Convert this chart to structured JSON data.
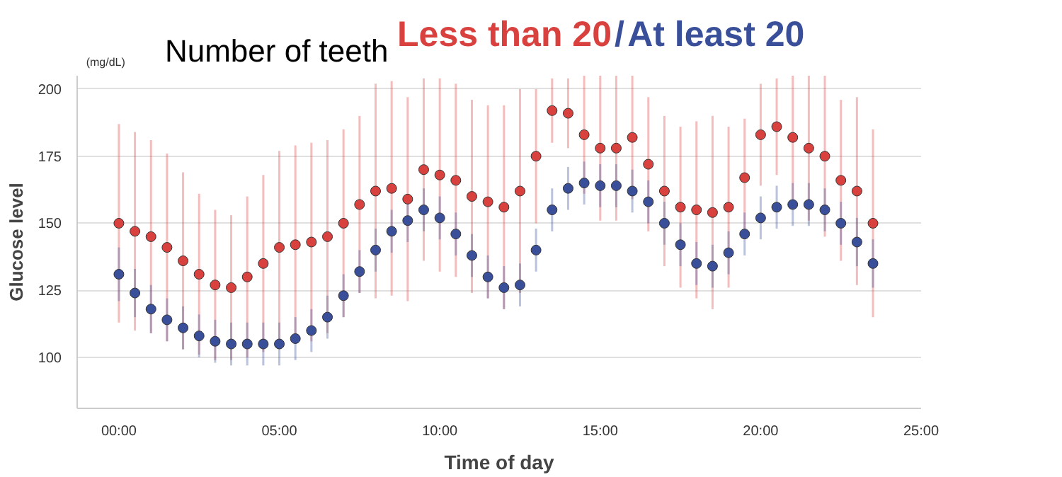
{
  "chart_data": {
    "type": "scatter",
    "title": "Number of teeth",
    "xlabel": "Time of day",
    "ylabel": "Glucose level",
    "annotations": [
      "(mg/dL)",
      "/"
    ],
    "x": [
      0,
      0.5,
      1,
      1.5,
      2,
      2.5,
      3,
      3.5,
      4,
      4.5,
      5,
      5.5,
      6,
      6.5,
      7,
      7.5,
      8,
      8.5,
      9,
      9.5,
      10,
      10.5,
      11,
      11.5,
      12,
      12.5,
      13,
      13.5,
      14,
      14.5,
      15,
      15.5,
      16,
      16.5,
      17,
      17.5,
      18,
      18.5,
      19,
      19.5,
      20,
      20.5,
      21,
      21.5,
      22,
      22.5,
      23,
      23.5
    ],
    "series": [
      {
        "name": "Less than 20",
        "color": "#d9413f",
        "values": [
          150,
          147,
          145,
          141,
          136,
          131,
          127,
          126,
          130,
          135,
          141,
          142,
          143,
          145,
          150,
          157,
          162,
          163,
          159,
          170,
          168,
          166,
          160,
          158,
          156,
          162,
          175,
          192,
          191,
          183,
          178,
          178,
          182,
          172,
          162,
          156,
          155,
          154,
          156,
          167,
          183,
          186,
          182,
          178,
          175,
          166,
          162,
          150
        ],
        "errors": [
          37,
          37,
          36,
          35,
          33,
          30,
          28,
          27,
          30,
          33,
          36,
          37,
          37,
          36,
          35,
          33,
          40,
          40,
          38,
          34,
          36,
          36,
          36,
          36,
          38,
          38,
          25,
          12,
          13,
          22,
          27,
          27,
          23,
          25,
          28,
          30,
          33,
          36,
          30,
          22,
          19,
          18,
          23,
          27,
          30,
          30,
          35,
          35
        ]
      },
      {
        "name": "At least 20",
        "color": "#3a4f9a",
        "values": [
          131,
          124,
          118,
          114,
          111,
          108,
          106,
          105,
          105,
          105,
          105,
          107,
          110,
          115,
          123,
          132,
          140,
          147,
          151,
          155,
          152,
          146,
          138,
          130,
          126,
          127,
          140,
          155,
          163,
          165,
          164,
          164,
          162,
          158,
          150,
          142,
          135,
          134,
          139,
          146,
          152,
          156,
          157,
          157,
          155,
          150,
          143,
          135
        ],
        "errors": [
          10,
          9,
          9,
          8,
          8,
          8,
          8,
          8,
          8,
          8,
          8,
          8,
          8,
          8,
          8,
          8,
          8,
          8,
          8,
          8,
          8,
          8,
          8,
          8,
          8,
          8,
          8,
          8,
          8,
          8,
          8,
          8,
          8,
          8,
          8,
          8,
          8,
          8,
          8,
          8,
          8,
          8,
          8,
          8,
          8,
          8,
          9,
          9
        ]
      }
    ],
    "xlim": [
      -1.3,
      25
    ],
    "ylim": [
      81,
      205
    ],
    "xticks": [
      {
        "value": 0,
        "label": "00:00"
      },
      {
        "value": 5,
        "label": "05:00"
      },
      {
        "value": 10,
        "label": "10:00"
      },
      {
        "value": 15,
        "label": "15:00"
      },
      {
        "value": 20,
        "label": "20:00"
      },
      {
        "value": 25,
        "label": "25:00"
      }
    ],
    "yticks": [
      100,
      125,
      150,
      175,
      200
    ],
    "grid": "y",
    "marker": "circle"
  }
}
